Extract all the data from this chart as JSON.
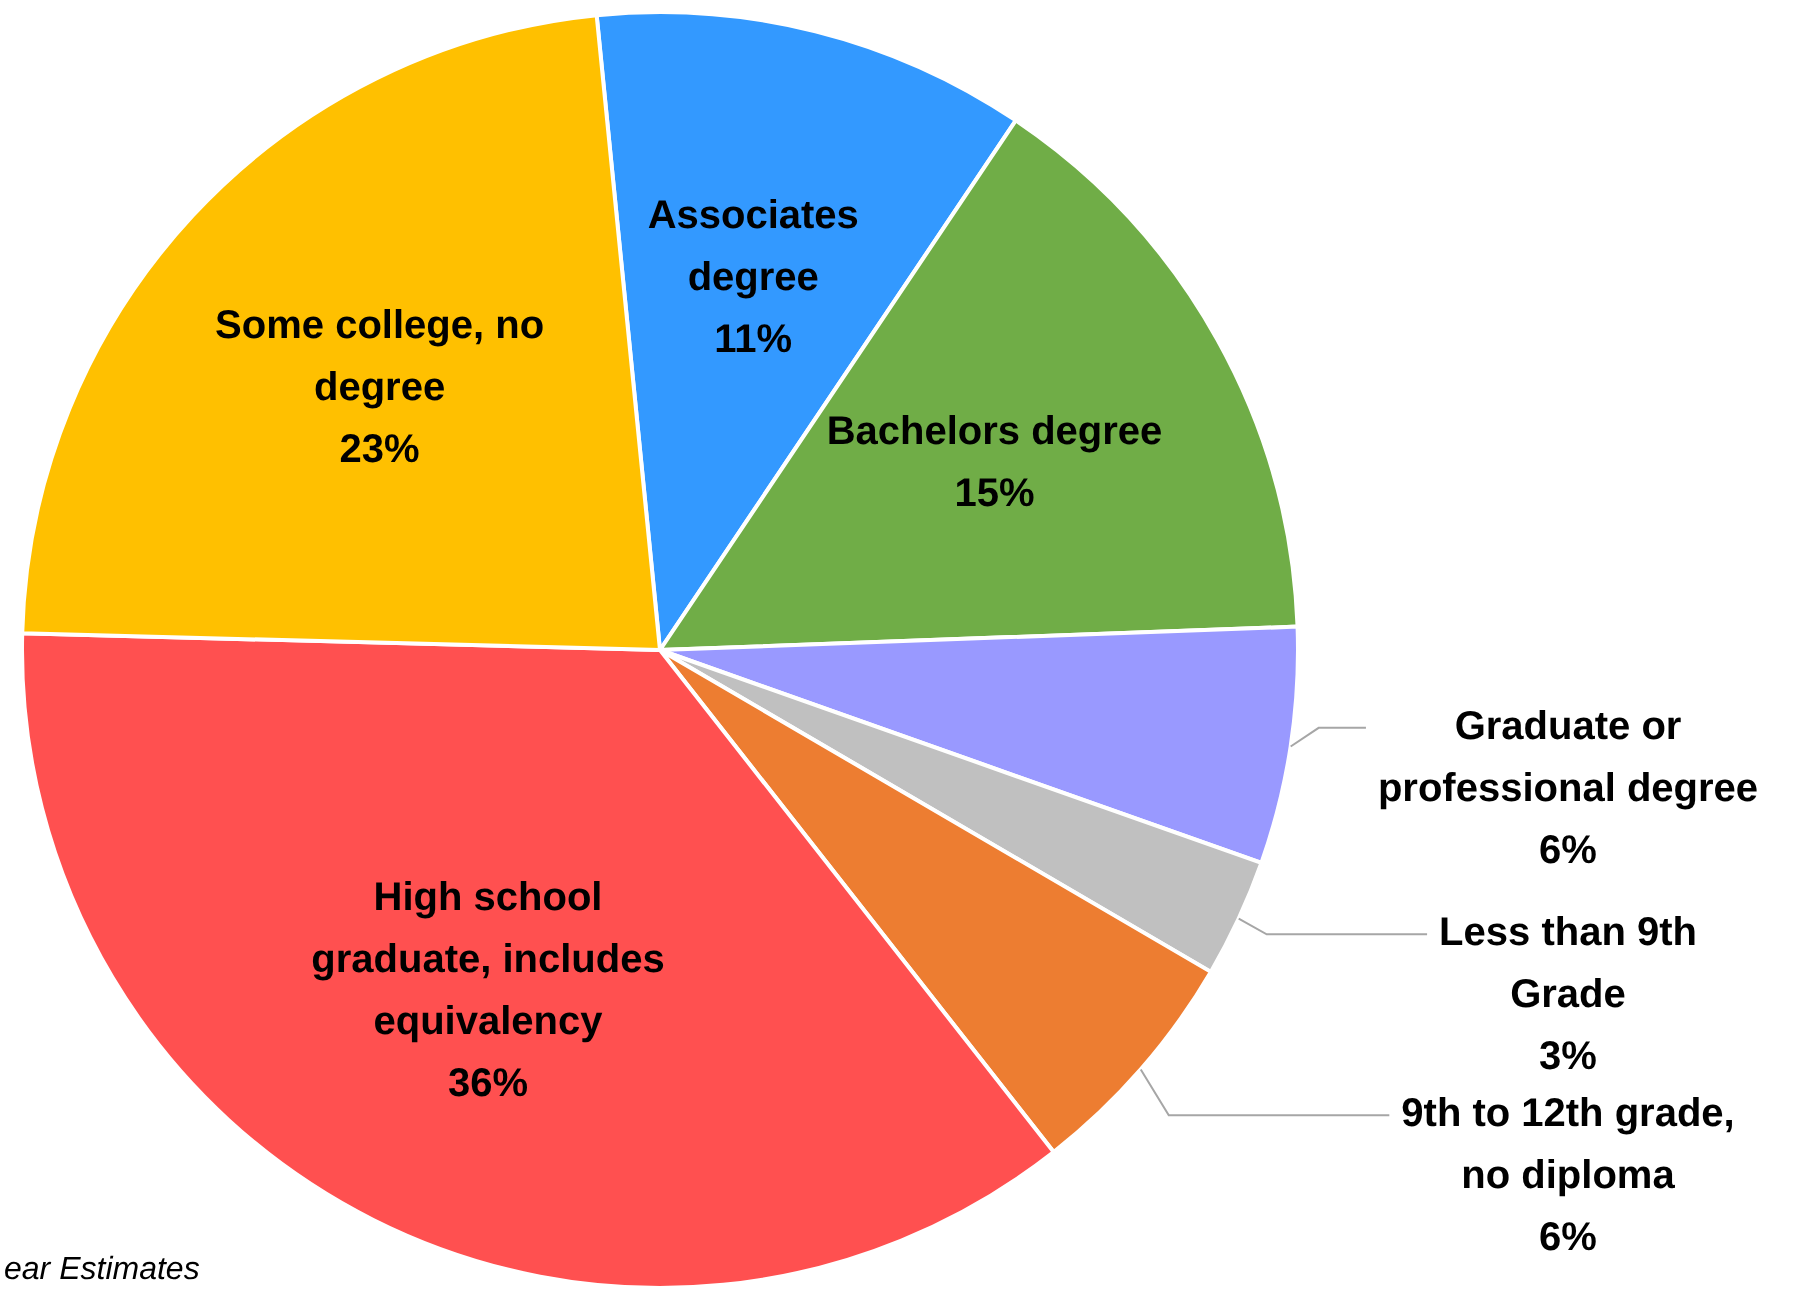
{
  "chart_data": {
    "type": "pie",
    "categories": [
      "Associates degree",
      "Bachelors degree",
      "Graduate or professional degree",
      "Less than 9th Grade",
      "9th to 12th grade, no diploma",
      "High school graduate, includes equivalency",
      "Some college, no degree"
    ],
    "values": [
      11,
      15,
      6,
      3,
      6,
      36,
      23
    ],
    "colors": [
      "#3399ff",
      "#70ad47",
      "#9999ff",
      "#c0c0c0",
      "#ed7d31",
      "#ff5050",
      "#ffc000"
    ],
    "value_labels": [
      "11%",
      "15%",
      "6%",
      "3%",
      "6%",
      "36%",
      "23%"
    ],
    "legend": false,
    "annotations": [
      "ear Estimates"
    ]
  }
}
